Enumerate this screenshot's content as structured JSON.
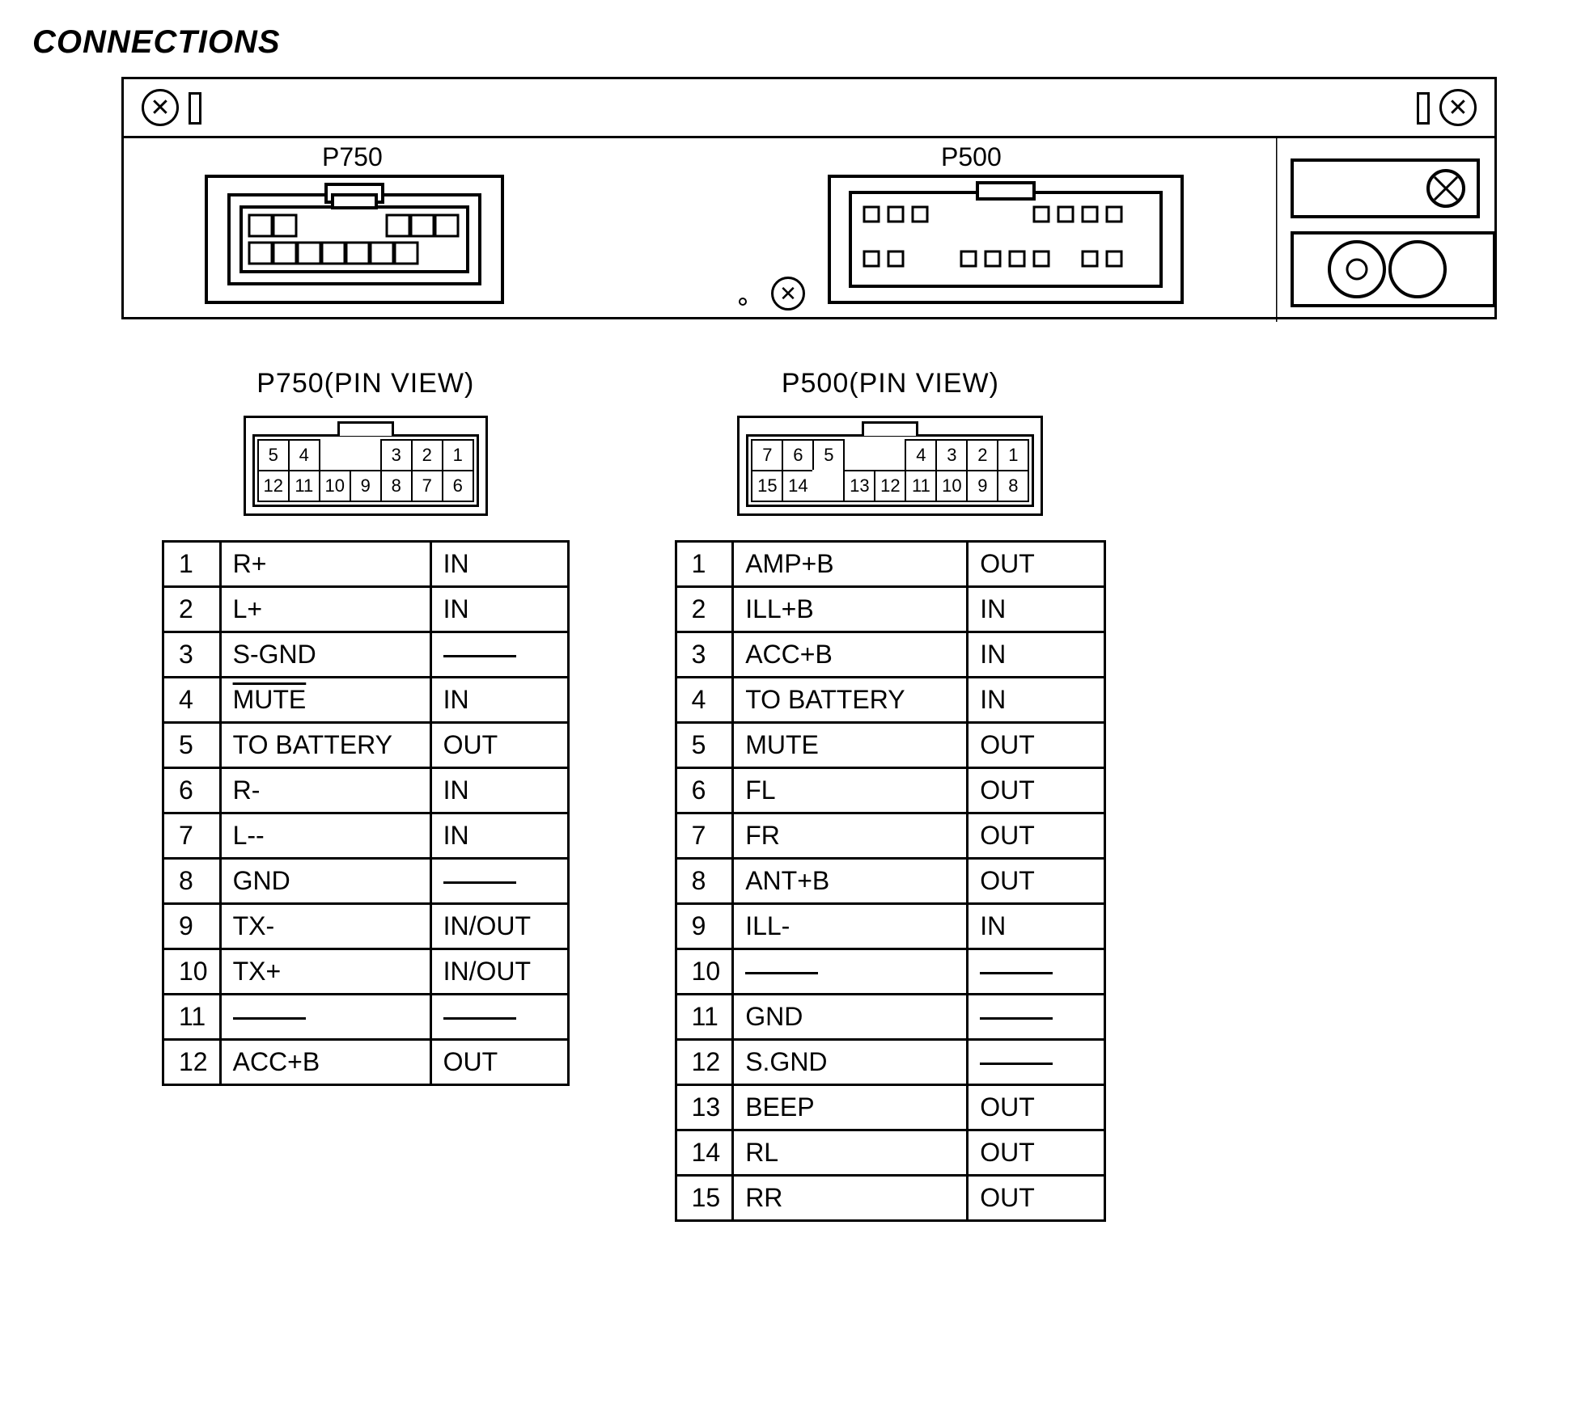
{
  "title": "CONNECTIONS",
  "device": {
    "connectors": [
      {
        "id": "P750",
        "label": "P750"
      },
      {
        "id": "P500",
        "label": "P500"
      }
    ]
  },
  "pinViews": {
    "p750": {
      "title": "P750(PIN VIEW)",
      "topRow": [
        "5",
        "4",
        "",
        "",
        "3",
        "2",
        "1"
      ],
      "bottomRow": [
        "12",
        "11",
        "10",
        "9",
        "8",
        "7",
        "6"
      ],
      "signals": [
        {
          "pin": "1",
          "name": "R+",
          "dir": "IN"
        },
        {
          "pin": "2",
          "name": "L+",
          "dir": "IN"
        },
        {
          "pin": "3",
          "name": "S-GND",
          "dir": "—"
        },
        {
          "pin": "4",
          "name": "MUTE",
          "dir": "IN",
          "overline": true
        },
        {
          "pin": "5",
          "name": "TO BATTERY",
          "dir": "OUT"
        },
        {
          "pin": "6",
          "name": "R-",
          "dir": "IN"
        },
        {
          "pin": "7",
          "name": "L--",
          "dir": "IN"
        },
        {
          "pin": "8",
          "name": "GND",
          "dir": "—"
        },
        {
          "pin": "9",
          "name": "TX-",
          "dir": "IN/OUT"
        },
        {
          "pin": "10",
          "name": "TX+",
          "dir": "IN/OUT"
        },
        {
          "pin": "11",
          "name": "—",
          "dir": "—"
        },
        {
          "pin": "12",
          "name": "ACC+B",
          "dir": "OUT"
        }
      ]
    },
    "p500": {
      "title": "P500(PIN VIEW)",
      "topRow": [
        "7",
        "6",
        "5",
        "",
        "",
        "4",
        "3",
        "2",
        "1"
      ],
      "bottomRow": [
        "15",
        "14",
        "",
        "13",
        "12",
        "11",
        "10",
        "9",
        "8"
      ],
      "signals": [
        {
          "pin": "1",
          "name": "AMP+B",
          "dir": "OUT"
        },
        {
          "pin": "2",
          "name": "ILL+B",
          "dir": "IN"
        },
        {
          "pin": "3",
          "name": "ACC+B",
          "dir": "IN"
        },
        {
          "pin": "4",
          "name": "TO BATTERY",
          "dir": "IN"
        },
        {
          "pin": "5",
          "name": "MUTE",
          "dir": "OUT"
        },
        {
          "pin": "6",
          "name": "FL",
          "dir": "OUT"
        },
        {
          "pin": "7",
          "name": "FR",
          "dir": "OUT"
        },
        {
          "pin": "8",
          "name": "ANT+B",
          "dir": "OUT"
        },
        {
          "pin": "9",
          "name": "ILL-",
          "dir": "IN"
        },
        {
          "pin": "10",
          "name": "—",
          "dir": "—"
        },
        {
          "pin": "11",
          "name": "GND",
          "dir": "—"
        },
        {
          "pin": "12",
          "name": "S.GND",
          "dir": "—"
        },
        {
          "pin": "13",
          "name": "BEEP",
          "dir": "OUT"
        },
        {
          "pin": "14",
          "name": "RL",
          "dir": "OUT"
        },
        {
          "pin": "15",
          "name": "RR",
          "dir": "OUT"
        }
      ]
    }
  },
  "style": {
    "stroke": "#000000",
    "strokeWidth": 3,
    "background": "#ffffff",
    "fontTitle": 40,
    "fontLabel": 32,
    "fontCell": 32,
    "pinCellSize": 40,
    "tableRowHeight": 56,
    "colWidths": {
      "num": 70,
      "name_p750": 260,
      "name_p500": 290,
      "dir": 170
    }
  }
}
